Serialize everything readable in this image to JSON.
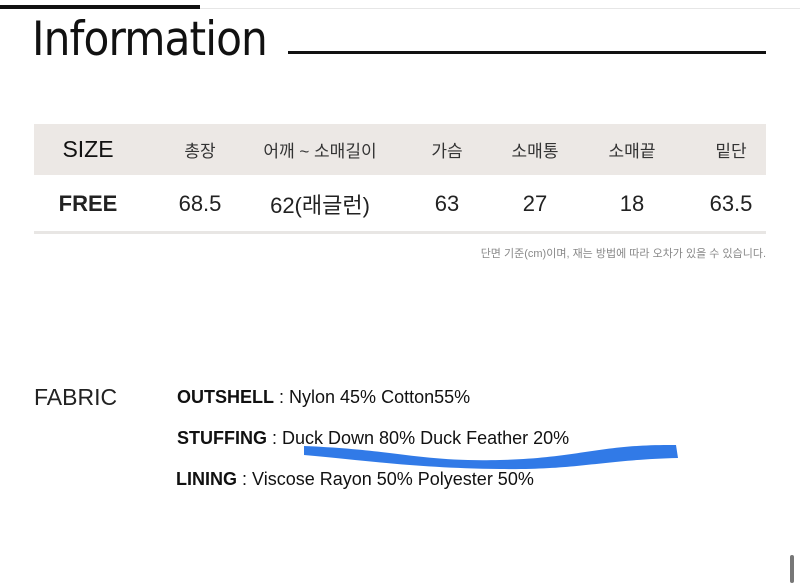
{
  "title": "Information",
  "size_table": {
    "headers": [
      "SIZE",
      "총장",
      "어깨 ~ 소매길이",
      "가슴",
      "소매통",
      "소매끝",
      "밑단"
    ],
    "rows": [
      [
        "FREE",
        "68.5",
        "62(래글런)",
        "63",
        "27",
        "18",
        "63.5"
      ]
    ]
  },
  "note": "단면 기준(cm)이며, 재는 방법에 따라 오차가 있을 수 있습니다.",
  "fabric": {
    "label": "FABRIC",
    "items": [
      {
        "name": "OUTSHELL",
        "sep": " : ",
        "value": "Nylon 45% Cotton55%"
      },
      {
        "name": "STUFFING",
        "sep": " : ",
        "value": "Duck Down 80% Duck Feather 20%"
      },
      {
        "name": "LINING",
        "sep": " : ",
        "value": "Viscose Rayon 50% Polyester 50%"
      }
    ]
  },
  "colors": {
    "highlight": "#1f6fe5",
    "header_bg": "#ece8e5"
  }
}
